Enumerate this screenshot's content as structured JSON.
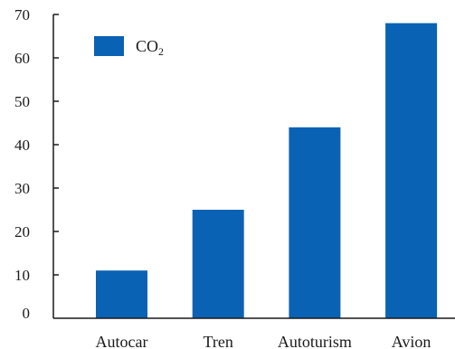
{
  "chart_data": {
    "type": "bar",
    "categories": [
      "Autocar",
      "Tren",
      "Autoturism",
      "Avion"
    ],
    "series": [
      {
        "name": "CO₂",
        "values": [
          11,
          25,
          44,
          68
        ]
      }
    ],
    "ylim": [
      0,
      70
    ],
    "yticks": [
      0,
      10,
      20,
      30,
      40,
      50,
      60,
      70
    ],
    "ytick_labels": [
      "0",
      "10",
      "20",
      "30",
      "40",
      "50",
      "60",
      "70"
    ],
    "legend": {
      "placement": "top-left",
      "label": "CO",
      "label_subscript": "2"
    },
    "grid": false,
    "colors": {
      "bar": "#0a62b5",
      "axis": "#1a1a1a",
      "text": "#1a1a1a"
    }
  }
}
